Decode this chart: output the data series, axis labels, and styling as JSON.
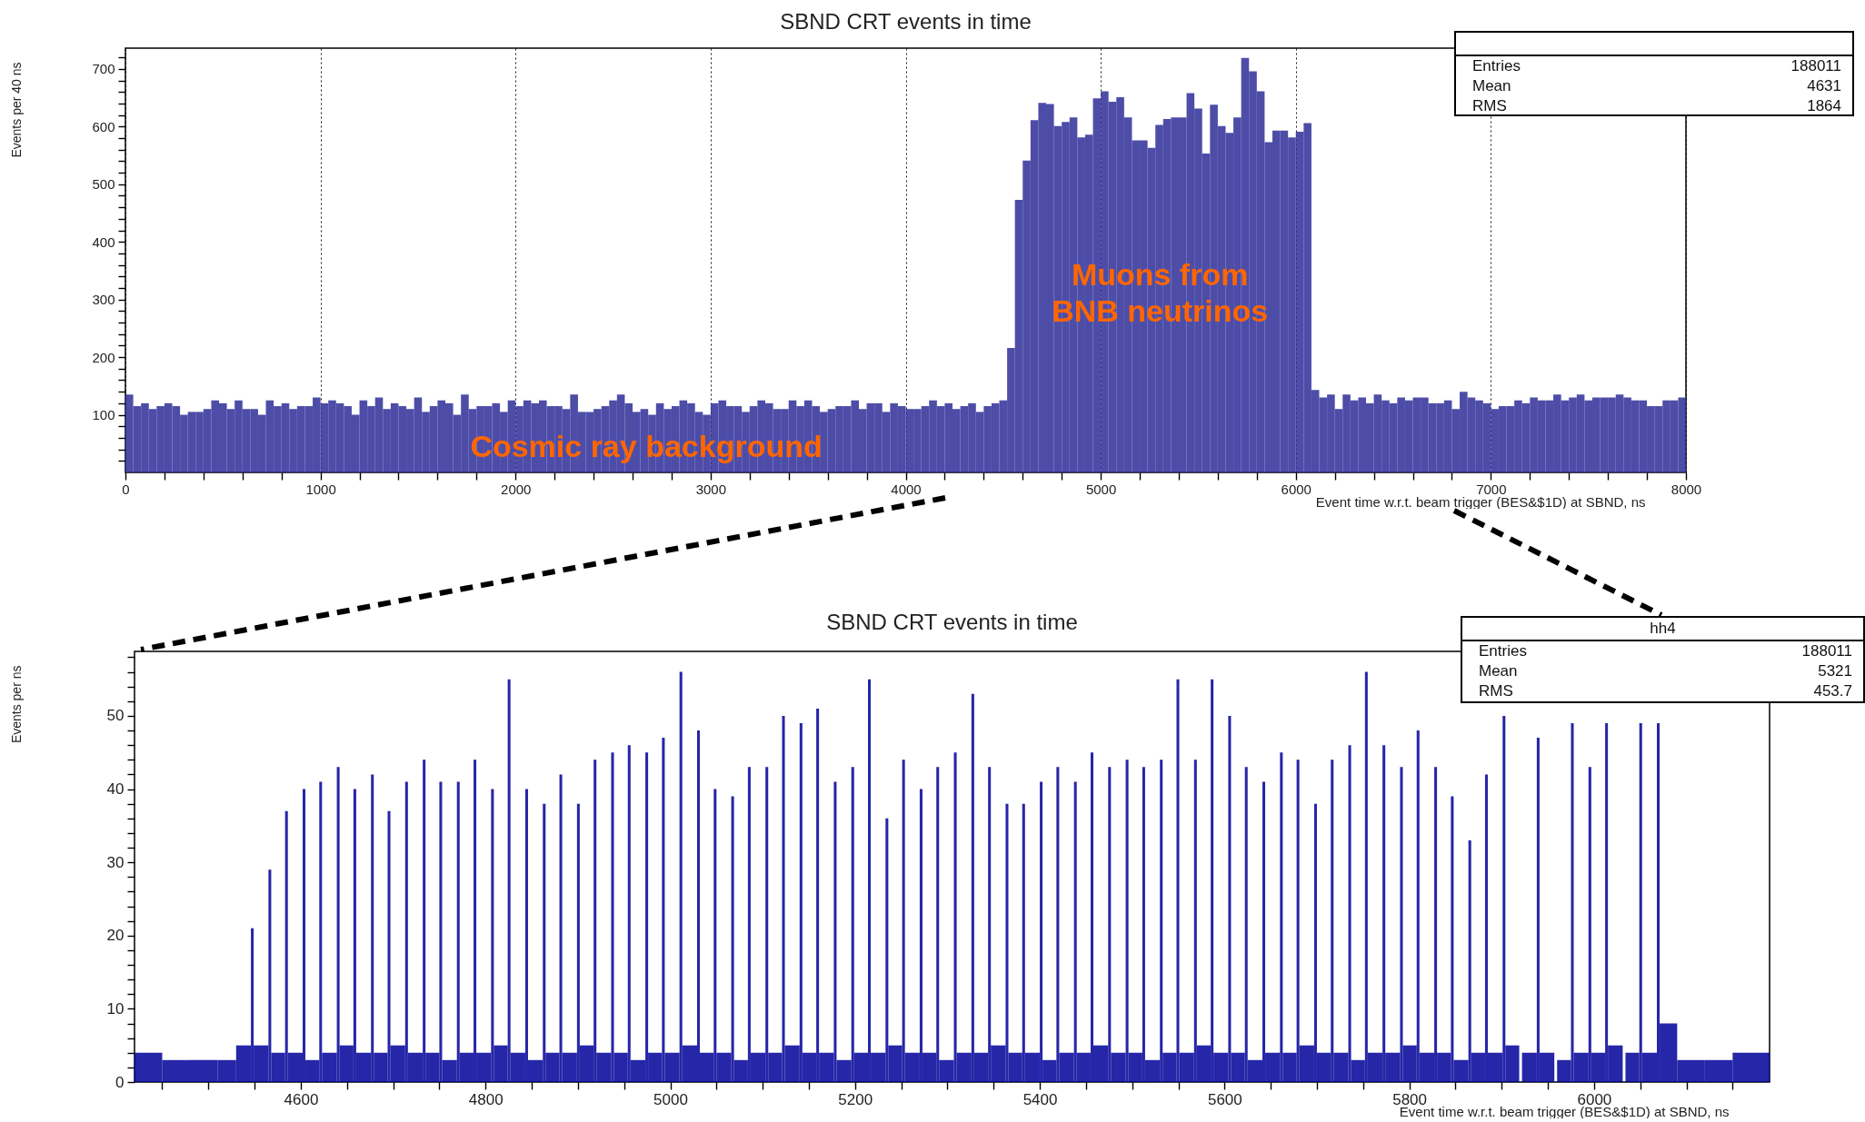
{
  "chart_data": [
    {
      "type": "histogram",
      "title": "SBND CRT events in time",
      "xlabel": "Event time w.r.t. beam trigger (BES&$1D) at SBND, ns",
      "ylabel": "Events per 40 ns",
      "color": "#2e2e99",
      "grid": "x",
      "xlim": [
        0,
        8000
      ],
      "ylim": [
        0,
        736
      ],
      "xticks": [
        0,
        {
          "value": 200,
          "label": null
        },
        {
          "value": 400,
          "label": null
        },
        {
          "value": 600,
          "label": null
        },
        {
          "value": 800,
          "label": null
        },
        1000,
        {
          "value": 1200,
          "label": null
        },
        {
          "value": 1400,
          "label": null
        },
        {
          "value": 1600,
          "label": null
        },
        {
          "value": 1800,
          "label": null
        },
        2000,
        {
          "value": 2200,
          "label": null
        },
        {
          "value": 2400,
          "label": null
        },
        {
          "value": 2600,
          "label": null
        },
        {
          "value": 2800,
          "label": null
        },
        3000,
        {
          "value": 3200,
          "label": null
        },
        {
          "value": 3400,
          "label": null
        },
        {
          "value": 3600,
          "label": null
        },
        {
          "value": 3800,
          "label": null
        },
        4000,
        {
          "value": 4200,
          "label": null
        },
        {
          "value": 4400,
          "label": null
        },
        {
          "value": 4600,
          "label": null
        },
        {
          "value": 4800,
          "label": null
        },
        5000,
        {
          "value": 5200,
          "label": null
        },
        {
          "value": 5400,
          "label": null
        },
        {
          "value": 5600,
          "label": null
        },
        {
          "value": 5800,
          "label": null
        },
        6000,
        {
          "value": 6200,
          "label": null
        },
        {
          "value": 6400,
          "label": null
        },
        {
          "value": 6600,
          "label": null
        },
        {
          "value": 6800,
          "label": null
        },
        7000,
        {
          "value": 7200,
          "label": null
        },
        {
          "value": 7400,
          "label": null
        },
        {
          "value": 7600,
          "label": null
        },
        {
          "value": 7800,
          "label": null
        },
        8000
      ],
      "yticks": [
        {
          "value": 20,
          "label": null
        },
        {
          "value": 40,
          "label": null
        },
        {
          "value": 60,
          "label": null
        },
        {
          "value": 80,
          "label": null
        },
        100,
        {
          "value": 120,
          "label": null
        },
        {
          "value": 140,
          "label": null
        },
        {
          "value": 160,
          "label": null
        },
        {
          "value": 180,
          "label": null
        },
        200,
        {
          "value": 220,
          "label": null
        },
        {
          "value": 240,
          "label": null
        },
        {
          "value": 260,
          "label": null
        },
        {
          "value": 280,
          "label": null
        },
        300,
        {
          "value": 320,
          "label": null
        },
        {
          "value": 340,
          "label": null
        },
        {
          "value": 360,
          "label": null
        },
        {
          "value": 380,
          "label": null
        },
        400,
        {
          "value": 420,
          "label": null
        },
        {
          "value": 440,
          "label": null
        },
        {
          "value": 460,
          "label": null
        },
        {
          "value": 480,
          "label": null
        },
        500,
        {
          "value": 520,
          "label": null
        },
        {
          "value": 540,
          "label": null
        },
        {
          "value": 560,
          "label": null
        },
        {
          "value": 580,
          "label": null
        },
        600,
        {
          "value": 620,
          "label": null
        },
        {
          "value": 640,
          "label": null
        },
        {
          "value": 660,
          "label": null
        },
        {
          "value": 680,
          "label": null
        },
        700,
        {
          "value": 720,
          "label": null
        }
      ],
      "bins": [
        0,
        40,
        80,
        120,
        160,
        200,
        240,
        280,
        320,
        360,
        400,
        440,
        480,
        520,
        560,
        600,
        640,
        680,
        720,
        760,
        800,
        840,
        880,
        920,
        960,
        1000,
        1040,
        1080,
        1120,
        1160,
        1200,
        1240,
        1280,
        1320,
        1360,
        1400,
        1440,
        1480,
        1520,
        1560,
        1600,
        1640,
        1680,
        1720,
        1760,
        1800,
        1840,
        1880,
        1920,
        1960,
        2000,
        2040,
        2080,
        2120,
        2160,
        2200,
        2240,
        2280,
        2320,
        2360,
        2400,
        2440,
        2480,
        2520,
        2560,
        2600,
        2640,
        2680,
        2720,
        2760,
        2800,
        2840,
        2880,
        2920,
        2960,
        3000,
        3040,
        3080,
        3120,
        3160,
        3200,
        3240,
        3280,
        3320,
        3360,
        3400,
        3440,
        3480,
        3520,
        3560,
        3600,
        3640,
        3680,
        3720,
        3760,
        3800,
        3840,
        3880,
        3920,
        3960,
        4000,
        4040,
        4080,
        4120,
        4160,
        4200,
        4240,
        4280,
        4320,
        4360,
        4400,
        4440,
        4480,
        4520,
        4560,
        4600,
        4640,
        4680,
        4720,
        4760,
        4800,
        4840,
        4880,
        4920,
        4960,
        5000,
        5040,
        5080,
        5120,
        5160,
        5200,
        5240,
        5280,
        5320,
        5360,
        5400,
        5440,
        5480,
        5520,
        5560,
        5600,
        5640,
        5680,
        5720,
        5760,
        5800,
        5840,
        5880,
        5920,
        5960,
        6000,
        6040,
        6080,
        6120,
        6160,
        6200,
        6240,
        6280,
        6320,
        6360,
        6400,
        6440,
        6480,
        6520,
        6560,
        6600,
        6640,
        6680,
        6720,
        6760,
        6800,
        6840,
        6880,
        6920,
        6960,
        7000,
        7040,
        7080,
        7120,
        7160,
        7200,
        7240,
        7280,
        7320,
        7360,
        7400,
        7440,
        7480,
        7520,
        7560,
        7600,
        7640,
        7680,
        7720,
        7760,
        7800,
        7840,
        7880,
        7920,
        7960,
        8000
      ],
      "values": [
        135,
        115,
        120,
        110,
        115,
        120,
        115,
        100,
        105,
        105,
        110,
        125,
        120,
        110,
        125,
        110,
        110,
        100,
        125,
        115,
        120,
        110,
        115,
        115,
        130,
        120,
        125,
        120,
        115,
        100,
        125,
        115,
        130,
        110,
        120,
        115,
        110,
        130,
        105,
        115,
        125,
        120,
        100,
        135,
        110,
        115,
        115,
        120,
        105,
        125,
        115,
        125,
        120,
        125,
        115,
        115,
        110,
        135,
        105,
        105,
        110,
        115,
        125,
        135,
        120,
        105,
        110,
        100,
        120,
        110,
        115,
        125,
        120,
        105,
        100,
        120,
        125,
        115,
        115,
        105,
        115,
        125,
        120,
        110,
        110,
        125,
        115,
        125,
        115,
        105,
        110,
        115,
        115,
        125,
        110,
        120,
        120,
        105,
        120,
        115,
        110,
        110,
        115,
        125,
        115,
        120,
        110,
        115,
        120,
        105,
        115,
        120,
        125,
        216,
        473,
        541,
        611,
        641,
        639,
        601,
        608,
        616,
        581,
        586,
        649,
        661,
        643,
        651,
        616,
        576,
        576,
        563,
        603,
        613,
        616,
        616,
        658,
        631,
        553,
        638,
        601,
        589,
        616,
        719,
        696,
        661,
        573,
        593,
        593,
        581,
        591,
        606,
        143,
        130,
        135,
        110,
        135,
        125,
        130,
        120,
        135,
        125,
        120,
        130,
        125,
        130,
        130,
        120,
        120,
        125,
        110,
        140,
        130,
        125,
        120,
        110,
        115,
        115,
        125,
        120,
        130,
        125,
        125,
        135,
        125,
        130,
        135,
        125,
        130,
        130,
        130,
        135,
        130,
        125,
        125,
        115,
        115,
        125,
        125,
        130
      ],
      "annotations": [
        {
          "text": "Cosmic ray background",
          "x": 2670,
          "y": 43
        },
        {
          "text": "Muons from\nBNB neutrinos",
          "x": 5303,
          "y": 340
        },
        "Entries",
        "188011",
        "Mean",
        "4631",
        "RMS",
        "1864"
      ]
    },
    {
      "type": "histogram",
      "title": "SBND CRT events in time",
      "xlabel": "Event time w.r.t. beam trigger (BES&$1D) at SBND, ns",
      "ylabel": "Events per ns",
      "color": "#000099",
      "xlim": [
        4420,
        6190
      ],
      "ylim": [
        0,
        58.8
      ],
      "xticks": [
        {
          "value": 4450,
          "label": null
        },
        {
          "value": 4500,
          "label": null
        },
        {
          "value": 4550,
          "label": null
        },
        4600,
        {
          "value": 4650,
          "label": null
        },
        {
          "value": 4700,
          "label": null
        },
        {
          "value": 4750,
          "label": null
        },
        4800,
        {
          "value": 4850,
          "label": null
        },
        {
          "value": 4900,
          "label": null
        },
        {
          "value": 4950,
          "label": null
        },
        5000,
        {
          "value": 5050,
          "label": null
        },
        {
          "value": 5100,
          "label": null
        },
        {
          "value": 5150,
          "label": null
        },
        5200,
        {
          "value": 5250,
          "label": null
        },
        {
          "value": 5300,
          "label": null
        },
        {
          "value": 5350,
          "label": null
        },
        5400,
        {
          "value": 5450,
          "label": null
        },
        {
          "value": 5500,
          "label": null
        },
        {
          "value": 5550,
          "label": null
        },
        5600,
        {
          "value": 5650,
          "label": null
        },
        {
          "value": 5700,
          "label": null
        },
        {
          "value": 5750,
          "label": null
        },
        5800,
        {
          "value": 5850,
          "label": null
        },
        {
          "value": 5900,
          "label": null
        },
        {
          "value": 5950,
          "label": null
        },
        6000,
        {
          "value": 6050,
          "label": null
        },
        {
          "value": 6100,
          "label": null
        },
        {
          "value": 6150,
          "label": null
        }
      ],
      "yticks": [
        0,
        {
          "value": 2,
          "label": null
        },
        {
          "value": 4,
          "label": null
        },
        {
          "value": 6,
          "label": null
        },
        {
          "value": 8,
          "label": null
        },
        10,
        {
          "value": 12,
          "label": null
        },
        {
          "value": 14,
          "label": null
        },
        {
          "value": 16,
          "label": null
        },
        {
          "value": 18,
          "label": null
        },
        20,
        {
          "value": 22,
          "label": null
        },
        {
          "value": 24,
          "label": null
        },
        {
          "value": 26,
          "label": null
        },
        {
          "value": 28,
          "label": null
        },
        30,
        {
          "value": 32,
          "label": null
        },
        {
          "value": 34,
          "label": null
        },
        {
          "value": 36,
          "label": null
        },
        {
          "value": 38,
          "label": null
        },
        40,
        {
          "value": 42,
          "label": null
        },
        {
          "value": 44,
          "label": null
        },
        {
          "value": 46,
          "label": null
        },
        {
          "value": 48,
          "label": null
        },
        50,
        {
          "value": 52,
          "label": null
        },
        {
          "value": 54,
          "label": null
        },
        {
          "value": 56,
          "label": null
        },
        {
          "value": 58,
          "label": null
        }
      ],
      "bins": [
        4420,
        4450,
        4480,
        4510,
        4530,
        4546,
        4549,
        4565,
        4568,
        4583,
        4586,
        4602,
        4605,
        4620,
        4623,
        4639,
        4642,
        4657,
        4660,
        4676,
        4679,
        4694,
        4697,
        4713,
        4716,
        4732,
        4735,
        4750,
        4753,
        4769,
        4772,
        4787,
        4790,
        4806,
        4809,
        4824,
        4827,
        4843,
        4846,
        4862,
        4865,
        4880,
        4883,
        4899,
        4902,
        4917,
        4920,
        4936,
        4939,
        4954,
        4957,
        4973,
        4976,
        4991,
        4994,
        5010,
        5013,
        5029,
        5032,
        5047,
        5050,
        5066,
        5069,
        5084,
        5087,
        5103,
        5106,
        5121,
        5124,
        5140,
        5143,
        5158,
        5161,
        5177,
        5180,
        5196,
        5199,
        5214,
        5217,
        5233,
        5236,
        5251,
        5254,
        5270,
        5273,
        5288,
        5291,
        5307,
        5310,
        5326,
        5329,
        5344,
        5347,
        5363,
        5366,
        5381,
        5384,
        5400,
        5403,
        5418,
        5421,
        5437,
        5440,
        5455,
        5458,
        5474,
        5477,
        5493,
        5496,
        5511,
        5514,
        5530,
        5533,
        5548,
        5551,
        5567,
        5570,
        5585,
        5588,
        5604,
        5607,
        5622,
        5625,
        5641,
        5644,
        5660,
        5663,
        5678,
        5681,
        5697,
        5700,
        5715,
        5718,
        5734,
        5737,
        5752,
        5755,
        5771,
        5774,
        5790,
        5793,
        5808,
        5811,
        5827,
        5830,
        5845,
        5848,
        5864,
        5867,
        5882,
        5885,
        5901,
        5904,
        5919,
        5922,
        5938,
        5941,
        5957,
        5960,
        5975,
        5978,
        5994,
        5997,
        6012,
        6015,
        6031,
        6034,
        6049,
        6052,
        6068,
        6071,
        6090,
        6120,
        6150,
        6190
      ],
      "values": [
        4,
        3,
        3,
        3,
        5,
        21,
        5,
        29,
        4,
        37,
        4,
        40,
        3,
        41,
        4,
        43,
        5,
        40,
        4,
        42,
        4,
        37,
        5,
        41,
        4,
        44,
        4,
        41,
        3,
        41,
        4,
        44,
        4,
        40,
        5,
        55,
        4,
        40,
        3,
        38,
        4,
        42,
        4,
        38,
        5,
        44,
        4,
        45,
        4,
        46,
        3,
        45,
        4,
        47,
        4,
        56,
        5,
        48,
        4,
        40,
        4,
        39,
        3,
        43,
        4,
        43,
        4,
        50,
        5,
        49,
        4,
        51,
        4,
        41,
        3,
        43,
        4,
        55,
        4,
        36,
        5,
        44,
        4,
        40,
        4,
        43,
        3,
        45,
        4,
        53,
        4,
        43,
        5,
        38,
        4,
        38,
        4,
        41,
        3,
        43,
        4,
        41,
        4,
        45,
        5,
        43,
        4,
        44,
        4,
        43,
        3,
        44,
        4,
        55,
        4,
        44,
        5,
        55,
        4,
        50,
        4,
        43,
        3,
        41,
        4,
        45,
        4,
        44,
        5,
        38,
        4,
        44,
        4,
        46,
        3,
        56,
        4,
        46,
        4,
        43,
        5,
        48,
        4,
        43,
        4,
        39,
        3,
        33,
        4,
        42,
        4,
        50,
        5,
        null,
        4,
        47,
        4,
        null,
        3,
        49,
        4,
        43,
        4,
        49,
        5,
        null,
        4,
        49,
        4,
        49,
        8,
        3,
        3,
        4
      ],
      "annotations": [
        "hh4",
        "Entries",
        "188011",
        "Mean",
        "5321",
        "RMS",
        "453.7"
      ]
    }
  ]
}
